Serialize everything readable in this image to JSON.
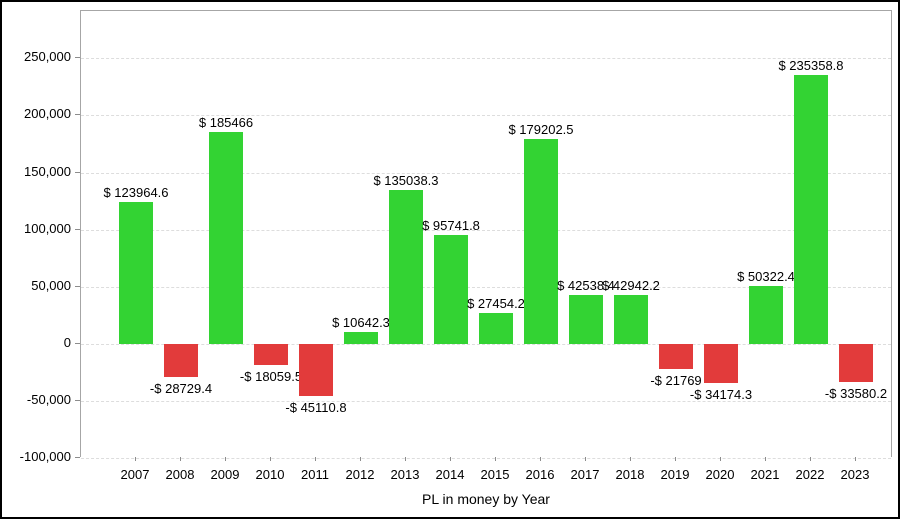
{
  "chart_data": {
    "type": "bar",
    "title": "PL in money by Year",
    "xlabel": "PL in money by Year",
    "ylabel": "",
    "categories": [
      "2007",
      "2008",
      "2009",
      "2010",
      "2011",
      "2012",
      "2013",
      "2014",
      "2015",
      "2016",
      "2017",
      "2018",
      "2019",
      "2020",
      "2021",
      "2022",
      "2023"
    ],
    "values": [
      123964.6,
      -28729.4,
      185466,
      -18059.5,
      -45110.8,
      10642.3,
      135038.3,
      95741.8,
      27454.2,
      179202.5,
      42538.4,
      42942.2,
      -21769,
      -34174.3,
      50322.4,
      235358.8,
      -33580.2
    ],
    "bar_labels": [
      "$ 123964.6",
      "-$ 28729.4",
      "$ 185466",
      "-$ 18059.5",
      "-$ 45110.8",
      "$ 10642.3",
      "$ 135038.3",
      "$ 95741.8",
      "$ 27454.2",
      "$ 179202.5",
      "$ 42538.4",
      "$ 42942.2",
      "-$ 21769",
      "-$ 34174.3",
      "$ 50322.4",
      "$ 235358.8",
      "-$ 33580.2"
    ],
    "yticks": [
      250000,
      200000,
      150000,
      100000,
      50000,
      0,
      -50000,
      -100000
    ],
    "ytick_labels": [
      "250,000",
      "200,000",
      "150,000",
      "100,000",
      "50,000",
      "0",
      "-50,000",
      "-100,000"
    ],
    "ylim": [
      -100000,
      292000
    ],
    "grid": "horizontal-dashed",
    "legend": "none",
    "colors": {
      "positive": "#33d333",
      "negative": "#e23b3b",
      "gridline": "#dddddd",
      "axis": "#a6a6a6",
      "text": "#000000"
    }
  }
}
